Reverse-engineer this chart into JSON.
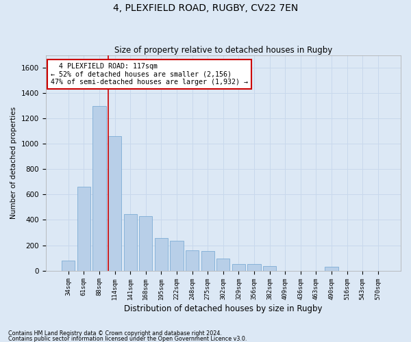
{
  "title": "4, PLEXFIELD ROAD, RUGBY, CV22 7EN",
  "subtitle": "Size of property relative to detached houses in Rugby",
  "xlabel": "Distribution of detached houses by size in Rugby",
  "ylabel": "Number of detached properties",
  "footnote1": "Contains HM Land Registry data © Crown copyright and database right 2024.",
  "footnote2": "Contains public sector information licensed under the Open Government Licence v3.0.",
  "annotation_line1": "  4 PLEXFIELD ROAD: 117sqm  ",
  "annotation_line2": "← 52% of detached houses are smaller (2,156)",
  "annotation_line3": "47% of semi-detached houses are larger (1,932) →",
  "bar_color": "#b8cfe8",
  "bar_edge_color": "#6fa3d0",
  "redline_color": "#cc0000",
  "annotation_box_edge": "#cc0000",
  "annotation_box_face": "#ffffff",
  "grid_color": "#c8d8ec",
  "background_color": "#dce8f5",
  "ylim": [
    0,
    1700
  ],
  "yticks": [
    0,
    200,
    400,
    600,
    800,
    1000,
    1200,
    1400,
    1600
  ],
  "categories": [
    "34sqm",
    "61sqm",
    "88sqm",
    "114sqm",
    "141sqm",
    "168sqm",
    "195sqm",
    "222sqm",
    "248sqm",
    "275sqm",
    "302sqm",
    "329sqm",
    "356sqm",
    "382sqm",
    "409sqm",
    "436sqm",
    "463sqm",
    "490sqm",
    "516sqm",
    "543sqm",
    "570sqm"
  ],
  "values": [
    80,
    660,
    1300,
    1060,
    445,
    430,
    255,
    235,
    160,
    155,
    95,
    50,
    50,
    33,
    0,
    0,
    0,
    32,
    0,
    0,
    0
  ],
  "red_line_index": 2.58,
  "bar_width": 0.85
}
